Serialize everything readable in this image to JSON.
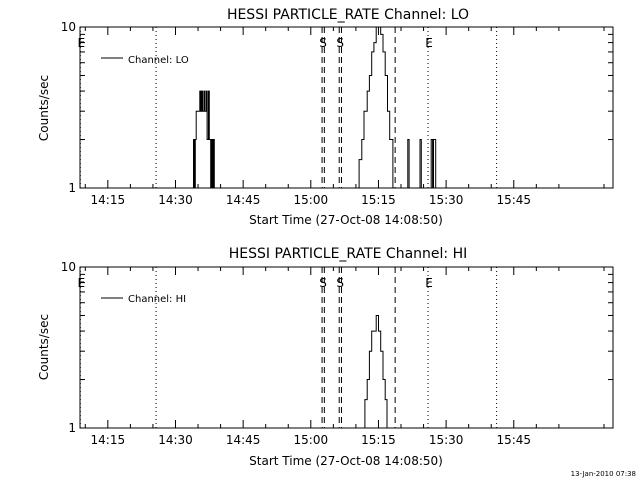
{
  "chart_data": [
    {
      "type": "line",
      "title": "HESSI PARTICLE_RATE Channel: LO",
      "xlabel": "Start Time (27-Oct-08 14:08:50)",
      "ylabel": "Counts/sec",
      "yscale": "log",
      "ylim": [
        1,
        10
      ],
      "y_ticks": [
        {
          "v": 1,
          "label": "1"
        },
        {
          "v": 10,
          "label": "10"
        }
      ],
      "xlim_min": [
        8.83,
        127.0
      ],
      "x_ticks": [
        {
          "t": 15,
          "label": "14:15"
        },
        {
          "t": 30,
          "label": "14:30"
        },
        {
          "t": 45,
          "label": "14:45"
        },
        {
          "t": 60,
          "label": "15:00"
        },
        {
          "t": 75,
          "label": "15:15"
        },
        {
          "t": 90,
          "label": "15:30"
        },
        {
          "t": 105,
          "label": "15:45"
        }
      ],
      "legend": {
        "position": "top-left",
        "label": "Channel: LO"
      },
      "markers": [
        {
          "t": 8.9,
          "label": "E",
          "style": "dotted"
        },
        {
          "t": 25.7,
          "label": "",
          "style": "dotted"
        },
        {
          "t": 62.5,
          "label": "S",
          "style": "dashed"
        },
        {
          "t": 63.0,
          "label": "",
          "style": "dashed"
        },
        {
          "t": 66.3,
          "label": "S",
          "style": "dashed"
        },
        {
          "t": 66.8,
          "label": "",
          "style": "dashed"
        },
        {
          "t": 78.7,
          "label": "",
          "style": "dashed"
        },
        {
          "t": 86.0,
          "label": "E",
          "style": "dotted"
        },
        {
          "t": 101.2,
          "label": "",
          "style": "dotted"
        }
      ],
      "series": [
        {
          "points": [
            [
              33.9,
              1
            ],
            [
              34.0,
              2
            ],
            [
              34.2,
              1
            ],
            [
              34.4,
              2
            ],
            [
              34.6,
              3
            ],
            [
              35.0,
              3
            ],
            [
              35.4,
              4
            ],
            [
              35.6,
              3
            ],
            [
              35.8,
              4
            ],
            [
              36.0,
              3
            ],
            [
              36.3,
              4
            ],
            [
              36.5,
              3
            ],
            [
              36.8,
              4
            ],
            [
              37.0,
              2
            ],
            [
              37.3,
              4
            ],
            [
              37.5,
              2
            ],
            [
              37.8,
              1
            ],
            [
              38.0,
              2
            ],
            [
              38.2,
              1
            ],
            [
              38.4,
              2
            ],
            [
              38.6,
              1
            ],
            [
              70.0,
              1
            ],
            [
              70.7,
              1.5
            ],
            [
              71.3,
              2
            ],
            [
              71.8,
              3
            ],
            [
              72.5,
              4
            ],
            [
              73.0,
              5
            ],
            [
              73.5,
              7
            ],
            [
              74.0,
              8
            ],
            [
              74.5,
              10
            ],
            [
              75.0,
              10
            ],
            [
              75.5,
              9
            ],
            [
              76.0,
              7
            ],
            [
              76.5,
              5
            ],
            [
              77.0,
              3
            ],
            [
              77.5,
              2
            ],
            [
              78.2,
              1
            ],
            [
              81.3,
              1
            ],
            [
              81.5,
              2
            ],
            [
              81.8,
              1
            ],
            [
              84.0,
              1
            ],
            [
              84.2,
              2
            ],
            [
              84.5,
              1
            ],
            [
              86.5,
              1
            ],
            [
              86.7,
              2
            ],
            [
              87.0,
              1
            ],
            [
              87.2,
              2
            ],
            [
              87.5,
              2
            ],
            [
              87.7,
              1
            ]
          ]
        }
      ]
    },
    {
      "type": "line",
      "title": "HESSI PARTICLE_RATE Channel: HI",
      "xlabel": "Start Time (27-Oct-08 14:08:50)",
      "ylabel": "Counts/sec",
      "yscale": "log",
      "ylim": [
        1,
        10
      ],
      "y_ticks": [
        {
          "v": 1,
          "label": "1"
        },
        {
          "v": 10,
          "label": "10"
        }
      ],
      "xlim_min": [
        8.83,
        127.0
      ],
      "x_ticks": [
        {
          "t": 15,
          "label": "14:15"
        },
        {
          "t": 30,
          "label": "14:30"
        },
        {
          "t": 45,
          "label": "14:45"
        },
        {
          "t": 60,
          "label": "15:00"
        },
        {
          "t": 75,
          "label": "15:15"
        },
        {
          "t": 90,
          "label": "15:30"
        },
        {
          "t": 105,
          "label": "15:45"
        }
      ],
      "legend": {
        "position": "top-left",
        "label": "Channel: HI"
      },
      "markers": [
        {
          "t": 8.9,
          "label": "E",
          "style": "dotted"
        },
        {
          "t": 25.7,
          "label": "",
          "style": "dotted"
        },
        {
          "t": 62.5,
          "label": "S",
          "style": "dashed"
        },
        {
          "t": 63.0,
          "label": "",
          "style": "dashed"
        },
        {
          "t": 66.3,
          "label": "S",
          "style": "dashed"
        },
        {
          "t": 66.8,
          "label": "",
          "style": "dashed"
        },
        {
          "t": 78.7,
          "label": "",
          "style": "dashed"
        },
        {
          "t": 86.0,
          "label": "E",
          "style": "dotted"
        },
        {
          "t": 101.2,
          "label": "",
          "style": "dotted"
        }
      ],
      "series": [
        {
          "points": [
            [
              71.6,
              1
            ],
            [
              72.0,
              1.5
            ],
            [
              72.5,
              2
            ],
            [
              73.0,
              3
            ],
            [
              73.5,
              4
            ],
            [
              74.0,
              4
            ],
            [
              74.5,
              5
            ],
            [
              75.0,
              4
            ],
            [
              75.5,
              3
            ],
            [
              76.0,
              2
            ],
            [
              76.5,
              1.5
            ],
            [
              76.9,
              1
            ]
          ]
        }
      ]
    }
  ],
  "footer": {
    "timestamp": "13-Jan-2010 07:38"
  }
}
